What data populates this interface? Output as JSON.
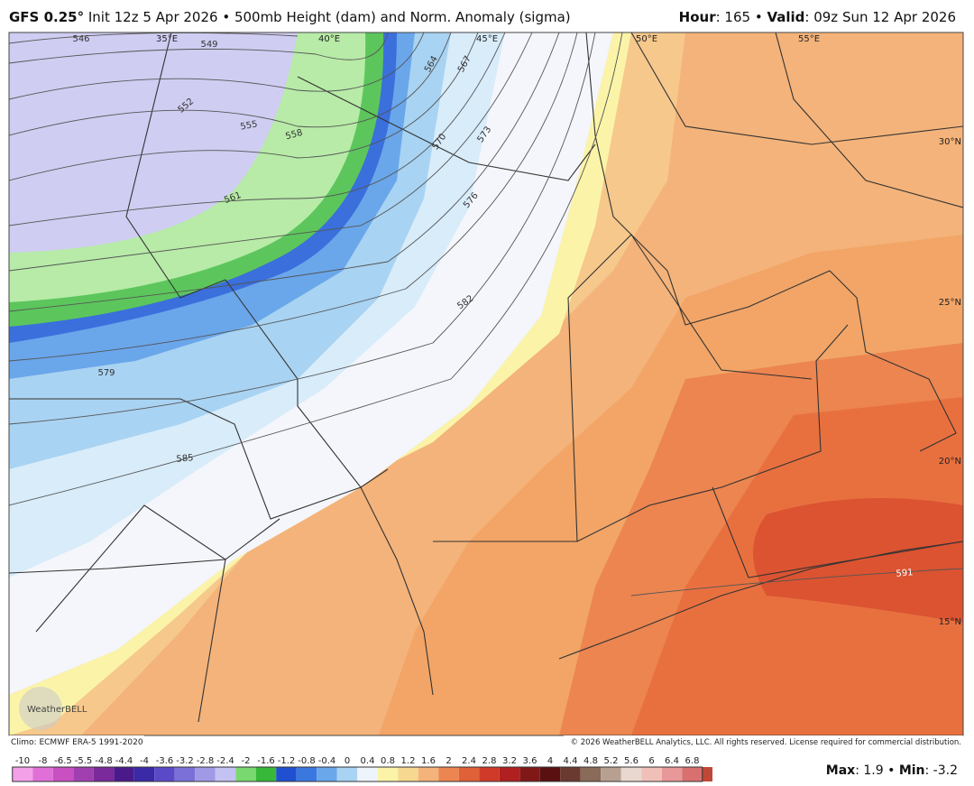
{
  "header": {
    "model": "GFS 0.25°",
    "info": "Init 12z 5 Apr 2026 • 500mb Height (dam) and Norm. Anomaly (sigma)",
    "right": [
      "Hour",
      ": 165 • ",
      "Valid",
      ": 09z Sun 12 Apr 2026"
    ]
  },
  "map": {
    "longitudes": [
      "35°E",
      "40°E",
      "45°E",
      "50°E",
      "55°E"
    ],
    "latitudes": [
      "30°N",
      "25°N",
      "20°N",
      "15°N"
    ],
    "contour_labels": [
      "546",
      "549",
      "552",
      "555",
      "558",
      "561",
      "564",
      "567",
      "570",
      "573",
      "576",
      "579",
      "582",
      "585",
      "591"
    ],
    "logo": "WeatherBELL",
    "climo": "Climo: ECMWF ERA-5 1991-2020",
    "copyright": "© 2026 WeatherBELL Analytics, LLC. All rights reserved. License required for commercial distribution."
  },
  "legend": {
    "labels": [
      "-10",
      "-8",
      "-6.5",
      "-5.5",
      "-4.8",
      "-4.4",
      "-4",
      "-3.6",
      "-3.2",
      "-2.8",
      "-2.4",
      "-2",
      "-1.6",
      "-1.2",
      "-0.8",
      "-0.4",
      "0",
      "0.4",
      "0.8",
      "1.2",
      "1.6",
      "2",
      "2.4",
      "2.8",
      "3.2",
      "3.6",
      "4",
      "4.4",
      "4.8",
      "5.2",
      "5.6",
      "6",
      "6.4",
      "6.8"
    ],
    "stats": [
      "Max",
      ": 1.9 • ",
      "Min",
      ": -3.2"
    ]
  }
}
